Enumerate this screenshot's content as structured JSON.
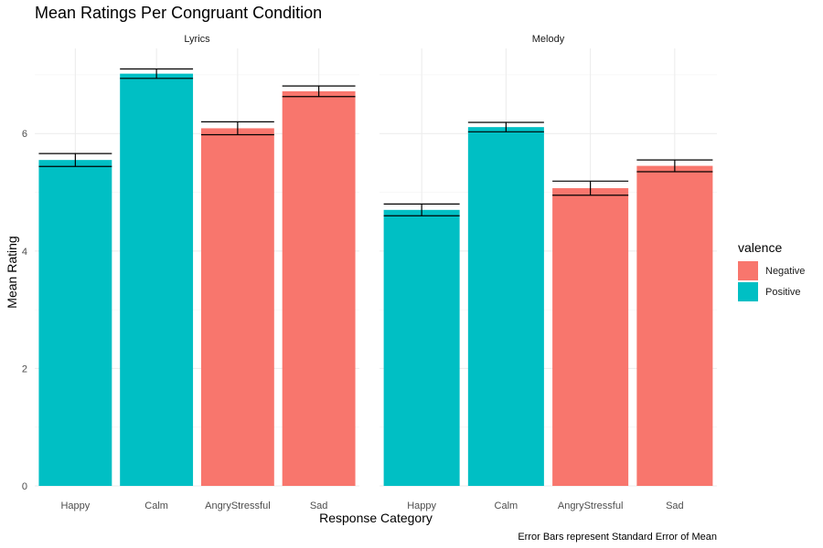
{
  "chart_data": {
    "type": "bar",
    "title": "Mean Ratings Per Congruant Condition",
    "xlabel": "Response Category",
    "ylabel": "Mean Rating",
    "caption": "Error Bars represent Standard Error of Mean",
    "ylim": [
      0,
      7.45
    ],
    "yticks": [
      0,
      2,
      4,
      6
    ],
    "grid": true,
    "legend": {
      "title": "valence",
      "placement": "right",
      "entries": [
        {
          "label": "Negative",
          "color": "#F8766D"
        },
        {
          "label": "Positive",
          "color": "#00BFC4"
        }
      ]
    },
    "categories": [
      "Happy",
      "Calm",
      "AngryStressful",
      "Sad"
    ],
    "category_valence": [
      "Positive",
      "Positive",
      "Negative",
      "Negative"
    ],
    "panels": [
      {
        "name": "Lyrics",
        "values": [
          5.55,
          7.02,
          6.09,
          6.72
        ],
        "se": [
          0.11,
          0.08,
          0.11,
          0.09
        ]
      },
      {
        "name": "Melody",
        "values": [
          4.7,
          6.11,
          5.07,
          5.45
        ],
        "se": [
          0.1,
          0.08,
          0.12,
          0.1
        ]
      }
    ]
  }
}
